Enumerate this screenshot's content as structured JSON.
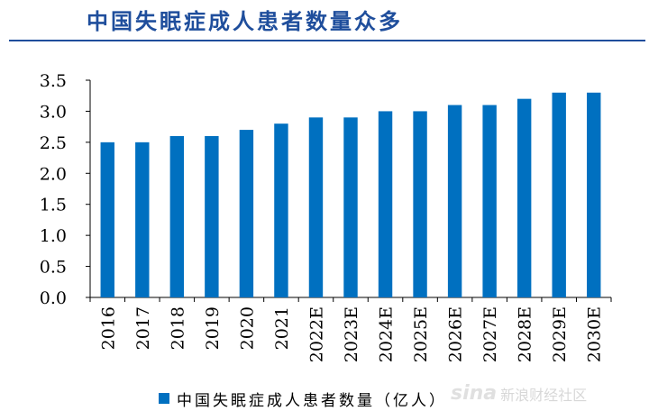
{
  "title": "中国失眠症成人患者数量众多",
  "chart_data": {
    "type": "bar",
    "categories": [
      "2016",
      "2017",
      "2018",
      "2019",
      "2020",
      "2021",
      "2022E",
      "2023E",
      "2024E",
      "2025E",
      "2026E",
      "2027E",
      "2028E",
      "2029E",
      "2030E"
    ],
    "series": [
      {
        "name": "中国失眠症成人患者数量（亿人）",
        "values": [
          2.5,
          2.5,
          2.6,
          2.6,
          2.7,
          2.8,
          2.9,
          2.9,
          3.0,
          3.0,
          3.1,
          3.1,
          3.2,
          3.3,
          3.3
        ]
      }
    ],
    "yticks": [
      "0.0",
      "0.5",
      "1.0",
      "1.5",
      "2.0",
      "2.5",
      "3.0",
      "3.5"
    ],
    "ylim": [
      0,
      3.5
    ],
    "grid": false,
    "legend_position": "bottom",
    "bar_color": "#0070c0"
  },
  "legend": {
    "label": "中国失眠症成人患者数量（亿人）"
  },
  "watermark": {
    "logo": "sina",
    "text": "新浪财经社区"
  }
}
